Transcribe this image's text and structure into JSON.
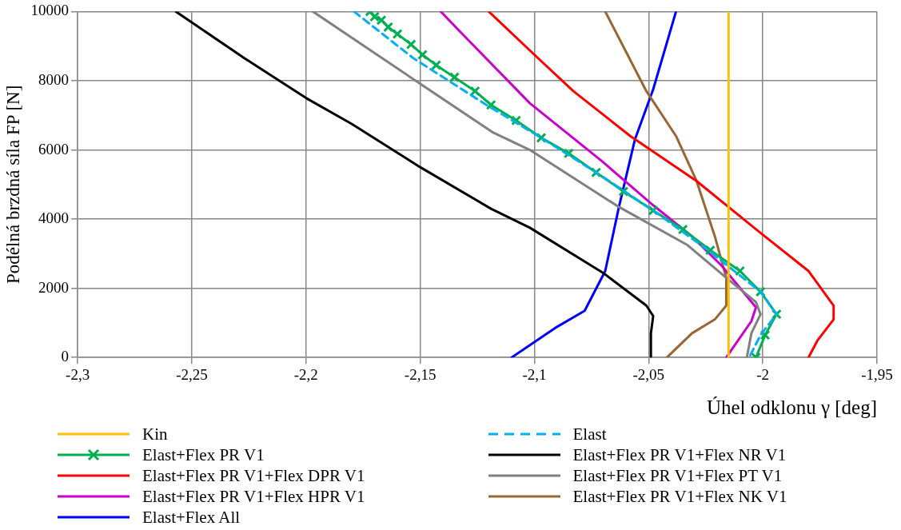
{
  "chart_data": {
    "type": "line",
    "xlabel": "Úhel odklonu γ [deg]",
    "ylabel": "Podélná brzdná síla FP [N]",
    "xlim": [
      -2.3,
      -1.95
    ],
    "xticks": [
      {
        "value": -2.3,
        "label": "-2,3"
      },
      {
        "value": -2.25,
        "label": "-2,25"
      },
      {
        "value": -2.2,
        "label": "-2,2"
      },
      {
        "value": -2.15,
        "label": "-2,15"
      },
      {
        "value": -2.1,
        "label": "-2,1"
      },
      {
        "value": -2.05,
        "label": "-2,05"
      },
      {
        "value": -2,
        "label": "-2"
      },
      {
        "value": -1.95,
        "label": "-1,95"
      }
    ],
    "ylim": [
      0,
      10000
    ],
    "yticks": [
      0,
      2000,
      4000,
      6000,
      8000,
      10000
    ],
    "grid": true,
    "legend": "bottom",
    "marker": "none",
    "line_style": "solid",
    "series": [
      {
        "name": "Kin",
        "color": "#ffc000",
        "x": [
          -2.015,
          -2.015
        ],
        "values": [
          0,
          10000
        ]
      },
      {
        "name": "Elast",
        "color": "#00b0f0",
        "line_style": "dashed",
        "x": [
          -2.179,
          -2.153,
          -2.121,
          -2.097,
          -2.073,
          -2.048,
          -2.024,
          -2.001,
          -1.994,
          -2.001,
          -2.006
        ],
        "values": [
          10000,
          8650,
          7300,
          6350,
          5350,
          4250,
          3100,
          1900,
          1250,
          650,
          0
        ]
      },
      {
        "name": "Elast+Flex PR V1",
        "color": "#00b050",
        "marker": "cross",
        "x": [
          -2.172,
          -2.17,
          -2.167,
          -2.164,
          -2.16,
          -2.154,
          -2.149,
          -2.143,
          -2.135,
          -2.126,
          -2.119,
          -2.108,
          -2.097,
          -2.085,
          -2.073,
          -2.061,
          -2.048,
          -2.035,
          -2.023,
          -2.01,
          -2.001,
          -1.994,
          -1.999,
          -2.003
        ],
        "values": [
          10000,
          9850,
          9750,
          9550,
          9350,
          9050,
          8750,
          8450,
          8100,
          7700,
          7300,
          6850,
          6350,
          5900,
          5350,
          4800,
          4250,
          3700,
          3100,
          2500,
          1900,
          1250,
          650,
          0
        ]
      },
      {
        "name": "Elast+Flex PR V1+Flex NR V1",
        "color": "#000000",
        "x": [
          -2.257,
          -2.227,
          -2.2,
          -2.18,
          -2.15,
          -2.119,
          -2.102,
          -2.07,
          -2.051,
          -2.048,
          -2.049,
          -2.049
        ],
        "values": [
          10000,
          8650,
          7500,
          6750,
          5500,
          4300,
          3750,
          2450,
          1500,
          1200,
          700,
          0
        ]
      },
      {
        "name": "Elast+Flex PR V1+Flex DPR V1",
        "color": "#ff0000",
        "x": [
          -2.12,
          -2.1,
          -2.083,
          -2.058,
          -2.029,
          -2.001,
          -1.98,
          -1.969,
          -1.969,
          -1.976,
          -1.98
        ],
        "values": [
          10000,
          8750,
          7700,
          6400,
          5100,
          3600,
          2500,
          1500,
          1100,
          500,
          0
        ]
      },
      {
        "name": "Elast+Flex PR V1+Flex PT V1",
        "color": "#808080",
        "x": [
          -2.197,
          -2.152,
          -2.118,
          -2.102,
          -2.063,
          -2.033,
          -2.015,
          -2.003,
          -2.001,
          -2.005,
          -2.007
        ],
        "values": [
          10000,
          8000,
          6500,
          6000,
          4350,
          3250,
          2250,
          1600,
          1250,
          700,
          0
        ]
      },
      {
        "name": "Elast+Flex PR V1+Flex HPR V1",
        "color": "#cc00cc",
        "x": [
          -2.141,
          -2.133,
          -2.102,
          -2.07,
          -2.048,
          -2.031,
          -2.018,
          -2.003,
          -2.005,
          -2.016
        ],
        "values": [
          10000,
          9450,
          7350,
          5650,
          4400,
          3500,
          2650,
          1450,
          1050,
          0
        ]
      },
      {
        "name": "Elast+Flex PR V1+Flex NK V1",
        "color": "#996633",
        "x": [
          -2.069,
          -2.051,
          -2.038,
          -2.029,
          -2.021,
          -2.016,
          -2.016,
          -2.021,
          -2.031,
          -2.042
        ],
        "values": [
          10000,
          7700,
          6400,
          5100,
          3500,
          2300,
          1500,
          1100,
          700,
          0
        ]
      },
      {
        "name": "Elast+Flex All",
        "color": "#0000ff",
        "x": [
          -2.038,
          -2.048,
          -2.056,
          -2.063,
          -2.069,
          -2.078,
          -2.091,
          -2.11
        ],
        "values": [
          10000,
          7750,
          6300,
          4350,
          2500,
          1350,
          850,
          0
        ]
      }
    ]
  }
}
